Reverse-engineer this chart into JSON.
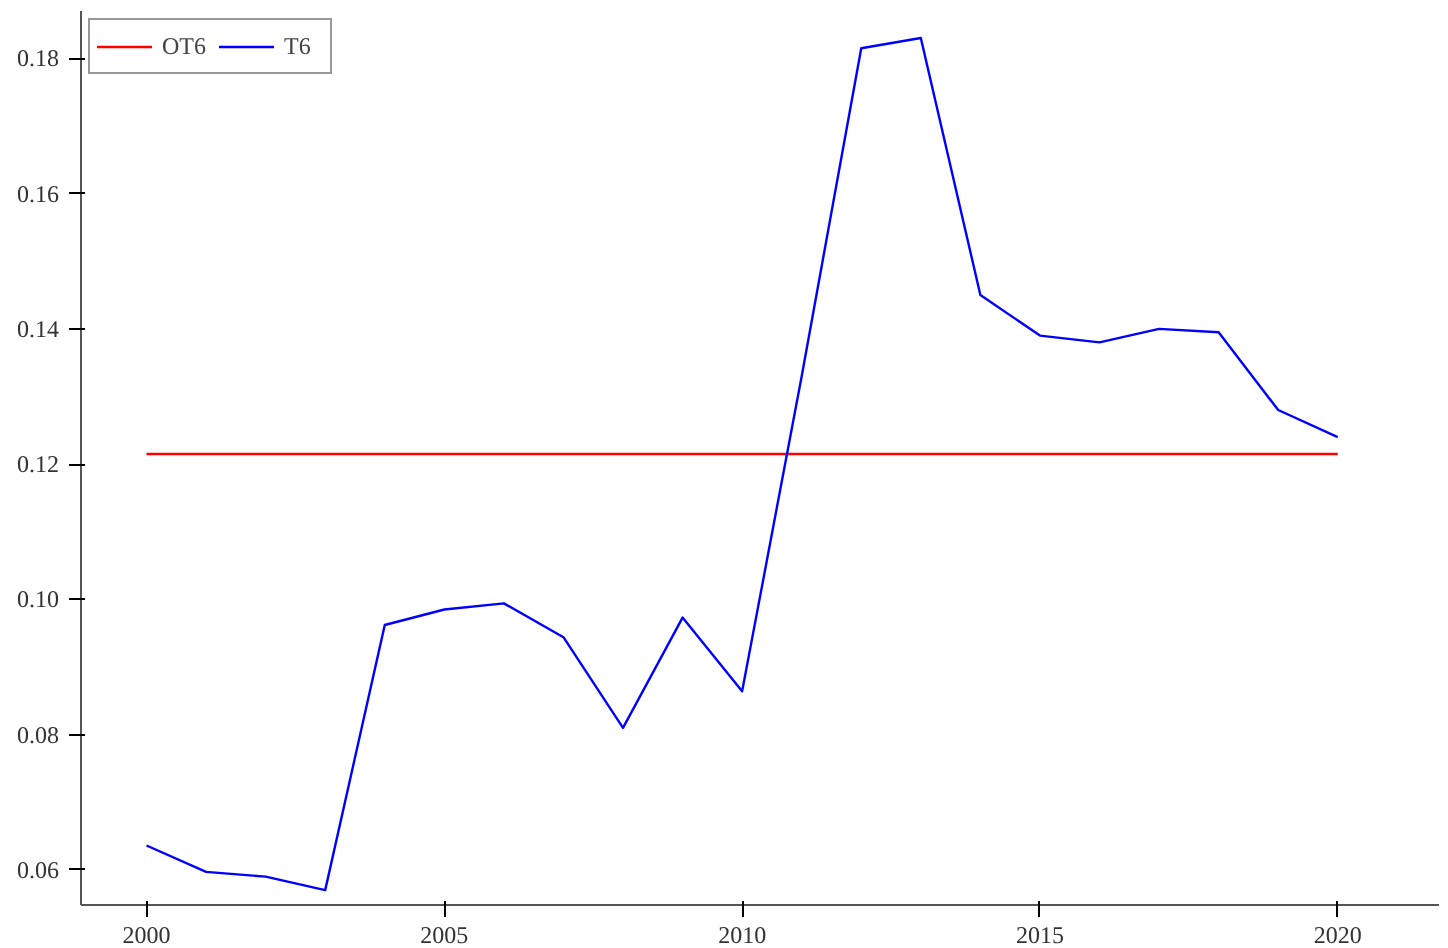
{
  "chart_data": {
    "type": "line",
    "x": [
      2000,
      2001,
      2002,
      2003,
      2004,
      2005,
      2006,
      2007,
      2008,
      2009,
      2010,
      2011,
      2012,
      2013,
      2014,
      2015,
      2016,
      2017,
      2018,
      2019,
      2020
    ],
    "series": [
      {
        "name": "OT6",
        "color": "#ff0000",
        "x": [
          2000,
          2020
        ],
        "values": [
          0.1215,
          0.1215
        ]
      },
      {
        "name": "T6",
        "color": "#0000ff",
        "values": [
          0.0636,
          0.0597,
          0.059,
          0.057,
          0.0962,
          0.0985,
          0.0994,
          0.0944,
          0.081,
          0.0973,
          0.0864,
          0.133,
          0.1815,
          0.183,
          0.145,
          0.139,
          0.138,
          0.14,
          0.1395,
          0.128,
          0.124
        ]
      }
    ],
    "xlim": [
      1998.9,
      2021.7
    ],
    "ylim": [
      0.0548,
      0.187
    ],
    "xticks": [
      2000,
      2005,
      2010,
      2015,
      2020
    ],
    "yticks": [
      {
        "value": 0.06,
        "label": "0.06"
      },
      {
        "value": 0.08,
        "label": "0.08"
      },
      {
        "value": 0.1,
        "label": "0.10"
      },
      {
        "value": 0.12,
        "label": "0.12"
      },
      {
        "value": 0.14,
        "label": "0.14"
      },
      {
        "value": 0.16,
        "label": "0.16"
      },
      {
        "value": 0.18,
        "label": "0.18"
      }
    ],
    "grid": false,
    "legend": "top left",
    "marker": "none",
    "line_style": "solid"
  }
}
